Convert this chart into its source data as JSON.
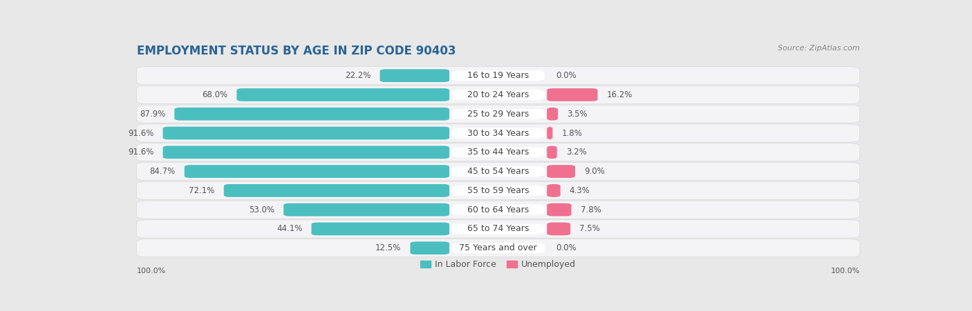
{
  "title": "EMPLOYMENT STATUS BY AGE IN ZIP CODE 90403",
  "source": "Source: ZipAtlas.com",
  "categories": [
    "16 to 19 Years",
    "20 to 24 Years",
    "25 to 29 Years",
    "30 to 34 Years",
    "35 to 44 Years",
    "45 to 54 Years",
    "55 to 59 Years",
    "60 to 64 Years",
    "65 to 74 Years",
    "75 Years and over"
  ],
  "labor_force": [
    22.2,
    68.0,
    87.9,
    91.6,
    91.6,
    84.7,
    72.1,
    53.0,
    44.1,
    12.5
  ],
  "unemployed": [
    0.0,
    16.2,
    3.5,
    1.8,
    3.2,
    9.0,
    4.3,
    7.8,
    7.5,
    0.0
  ],
  "labor_color": "#4bbfc0",
  "unemployed_color": "#f07090",
  "bg_color": "#e8e8e8",
  "row_bg_color": "#f4f4f6",
  "row_bg_color2": "#e2e2e6",
  "label_pill_color": "#ffffff",
  "title_color": "#2a6496",
  "source_color": "#888888",
  "text_color": "#555555",
  "title_fontsize": 12,
  "source_fontsize": 8,
  "label_fontsize": 9,
  "bar_label_fontsize": 8.5,
  "axis_label_fontsize": 8,
  "legend_fontsize": 9
}
